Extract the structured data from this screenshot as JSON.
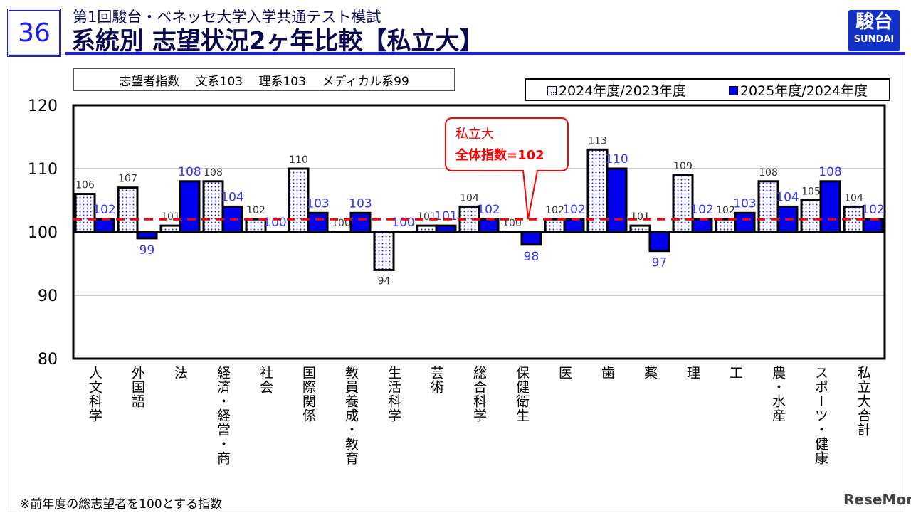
{
  "header": {
    "page_number": "36",
    "subtitle": "第1回駿台・ベネッセ大学入学共通テスト模試",
    "title": "系統別 志望状況2ヶ年比較【私立大】",
    "logo_text": "駿台",
    "logo_sub": "SUNDAI"
  },
  "note_box": "志望者指数　 文系103　 理系103　 メディカル系99",
  "footnote": "※前年度の総志望者を100とする指数",
  "watermark": "ReseMom",
  "callout": {
    "line1": "私立大",
    "line2": "全体指数=102"
  },
  "colors": {
    "series1": "#ffffff dotted #1a1aff",
    "series2": "#0000ee",
    "reference_line": "#ff0000",
    "label1": "#333333",
    "label2": "#3333ff"
  },
  "chart_data": {
    "type": "bar",
    "ylim": [
      80,
      120
    ],
    "yticks": [
      80,
      90,
      100,
      110,
      120
    ],
    "grid": true,
    "baseline": 100,
    "reference_line": 102,
    "legend_position": "top-right",
    "categories": [
      "人文科学",
      "外国語",
      "法",
      "経済・経営・商",
      "社会",
      "国際関係",
      "教員養成・教育",
      "生活科学",
      "芸術",
      "総合科学",
      "保健衛生",
      "医",
      "歯",
      "薬",
      "理",
      "工",
      "農・水産",
      "スポーツ・健康",
      "私立大合計"
    ],
    "series": [
      {
        "name": "2024年度/2023年度",
        "values": [
          106,
          107,
          101,
          108,
          102,
          110,
          100,
          94,
          101,
          104,
          100,
          102,
          113,
          101,
          109,
          102,
          108,
          105,
          104
        ]
      },
      {
        "name": "2025年度/2024年度",
        "values": [
          102,
          99,
          108,
          104,
          100,
          103,
          103,
          100,
          101,
          102,
          98,
          102,
          110,
          97,
          102,
          103,
          104,
          108,
          102
        ]
      }
    ]
  }
}
